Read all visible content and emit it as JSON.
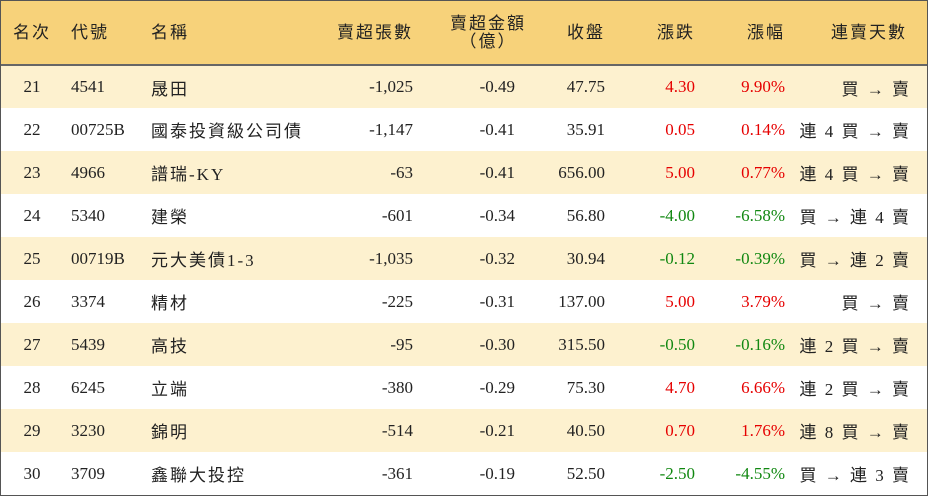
{
  "header": {
    "rank": "名次",
    "code": "代號",
    "name": "名稱",
    "sell_volume": "賣超張數",
    "sell_amount_line1": "賣超金額",
    "sell_amount_line2": "（億）",
    "close": "收盤",
    "change": "漲跌",
    "change_pct": "漲幅",
    "consecutive": "連賣天數"
  },
  "colors": {
    "up": "#e60000",
    "down": "#118811",
    "header_bg": "#f7d27a",
    "alt_row_bg": "#fdf1cf"
  },
  "rows": [
    {
      "rank": "21",
      "code": "4541",
      "name": "晟田",
      "volume": "-1,025",
      "amount": "-0.49",
      "close": "47.75",
      "change": "4.30",
      "pct": "9.90%",
      "days": "買 → 賣",
      "dir": "up"
    },
    {
      "rank": "22",
      "code": "00725B",
      "name": "國泰投資級公司債",
      "volume": "-1,147",
      "amount": "-0.41",
      "close": "35.91",
      "change": "0.05",
      "pct": "0.14%",
      "days": "連 4 買 → 賣",
      "dir": "up"
    },
    {
      "rank": "23",
      "code": "4966",
      "name": "譜瑞-KY",
      "volume": "-63",
      "amount": "-0.41",
      "close": "656.00",
      "change": "5.00",
      "pct": "0.77%",
      "days": "連 4 買 → 賣",
      "dir": "up"
    },
    {
      "rank": "24",
      "code": "5340",
      "name": "建榮",
      "volume": "-601",
      "amount": "-0.34",
      "close": "56.80",
      "change": "-4.00",
      "pct": "-6.58%",
      "days": "買 → 連 4 賣",
      "dir": "down"
    },
    {
      "rank": "25",
      "code": "00719B",
      "name": "元大美債1-3",
      "volume": "-1,035",
      "amount": "-0.32",
      "close": "30.94",
      "change": "-0.12",
      "pct": "-0.39%",
      "days": "買 → 連 2 賣",
      "dir": "down"
    },
    {
      "rank": "26",
      "code": "3374",
      "name": "精材",
      "volume": "-225",
      "amount": "-0.31",
      "close": "137.00",
      "change": "5.00",
      "pct": "3.79%",
      "days": "買 → 賣",
      "dir": "up"
    },
    {
      "rank": "27",
      "code": "5439",
      "name": "高技",
      "volume": "-95",
      "amount": "-0.30",
      "close": "315.50",
      "change": "-0.50",
      "pct": "-0.16%",
      "days": "連 2 買 → 賣",
      "dir": "down"
    },
    {
      "rank": "28",
      "code": "6245",
      "name": "立端",
      "volume": "-380",
      "amount": "-0.29",
      "close": "75.30",
      "change": "4.70",
      "pct": "6.66%",
      "days": "連 2 買 → 賣",
      "dir": "up"
    },
    {
      "rank": "29",
      "code": "3230",
      "name": "錦明",
      "volume": "-514",
      "amount": "-0.21",
      "close": "40.50",
      "change": "0.70",
      "pct": "1.76%",
      "days": "連 8 買 → 賣",
      "dir": "up"
    },
    {
      "rank": "30",
      "code": "3709",
      "name": "鑫聯大投控",
      "volume": "-361",
      "amount": "-0.19",
      "close": "52.50",
      "change": "-2.50",
      "pct": "-4.55%",
      "days": "買 → 連 3 賣",
      "dir": "down"
    }
  ]
}
